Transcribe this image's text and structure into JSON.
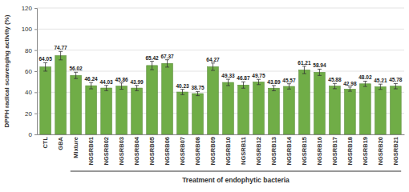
{
  "chart_data": {
    "type": "bar",
    "y_label": "DPPH radical scavenging activity (%)",
    "x_label": "Treatment of endophytic bacteria",
    "categories": [
      "CTL",
      "GBA",
      "Mixture",
      "NGSRB01",
      "NGSRB02",
      "NGSRB03",
      "NGSRB04",
      "NGSRB05",
      "NGSRB06",
      "NGSRB07",
      "NGSRB08",
      "NGSRB09",
      "NGSRB10",
      "NGSRB11",
      "NGSRB12",
      "NGSRB13",
      "NGSRB14",
      "NGSRB15",
      "NGSRB16",
      "NGSRB17",
      "NGSRB18",
      "NGSRB19",
      "NGSRB20",
      "NGSRB21"
    ],
    "values": [
      64.05,
      74.77,
      56.02,
      46.24,
      44.03,
      45.86,
      43.99,
      65.42,
      67.37,
      40.23,
      38.75,
      64.27,
      49.33,
      46.87,
      49.75,
      43.89,
      45.57,
      61.21,
      58.94,
      45.88,
      42.98,
      48.02,
      45.21,
      45.78
    ],
    "errors": [
      4,
      4,
      3,
      3,
      2.5,
      3,
      2.5,
      4,
      3.5,
      2.5,
      2,
      3.5,
      3,
      3,
      2.5,
      2.5,
      2.5,
      3.5,
      3,
      2.5,
      2,
      2.5,
      2.5,
      2.5
    ],
    "color": "#70ad47",
    "ylim": [
      0,
      120
    ],
    "yticks": [
      0,
      20,
      40,
      60,
      80,
      100,
      120
    ],
    "grid": true,
    "data_labels": true
  }
}
